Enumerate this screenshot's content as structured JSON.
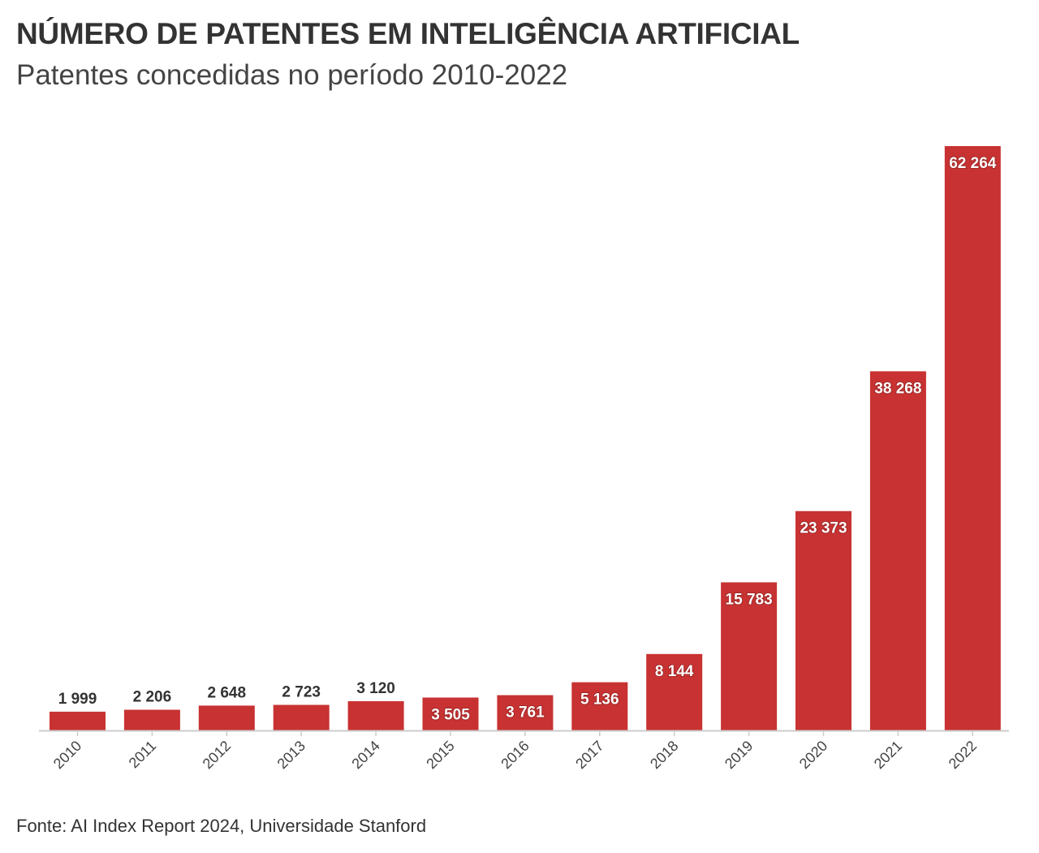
{
  "title": "NÚMERO DE PATENTES EM INTELIGÊNCIA ARTIFICIAL",
  "subtitle": "Patentes concedidas no período 2010-2022",
  "source": "Fonte: AI Index Report 2024, Universidade Stanford",
  "colors": {
    "bar": "#c83232",
    "text": "#333333",
    "axis": "#cccccc"
  },
  "chart_data": {
    "type": "bar",
    "title": "NÚMERO DE PATENTES EM INTELIGÊNCIA ARTIFICIAL",
    "subtitle": "Patentes concedidas no período 2010-2022",
    "categories": [
      "2010",
      "2011",
      "2012",
      "2013",
      "2014",
      "2015",
      "2016",
      "2017",
      "2018",
      "2019",
      "2020",
      "2021",
      "2022"
    ],
    "values": [
      1999,
      2206,
      2648,
      2723,
      3120,
      3505,
      3761,
      5136,
      8144,
      15783,
      23373,
      38268,
      62264
    ],
    "value_labels": [
      "1 999",
      "2 206",
      "2 648",
      "2 723",
      "3 120",
      "3 505",
      "3 761",
      "5 136",
      "8 144",
      "15 783",
      "23 373",
      "38 268",
      "62 264"
    ],
    "xlabel": "",
    "ylabel": "",
    "ylim": [
      0,
      62264
    ],
    "grid": false,
    "legend": "none"
  }
}
